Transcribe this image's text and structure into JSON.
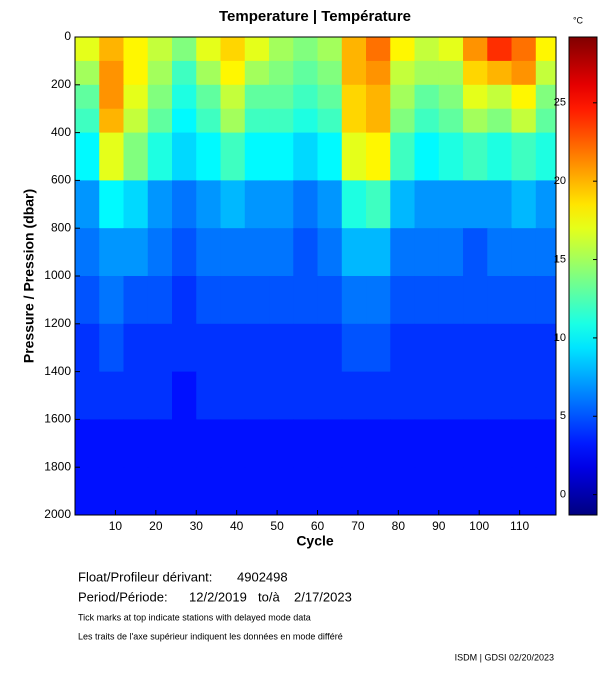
{
  "chart_data": {
    "type": "heatmap",
    "title": "Temperature | Température",
    "x_label": "Cycle",
    "y_label": "Pressure / Pression (dbar)",
    "colorbar_label": "°C",
    "colormap": "jet",
    "x": [
      0,
      6,
      12,
      18,
      24,
      30,
      36,
      42,
      48,
      54,
      60,
      66,
      72,
      78,
      84,
      90,
      96,
      102,
      108,
      114,
      119
    ],
    "y": [
      0,
      100,
      200,
      300,
      400,
      600,
      800,
      1000,
      1200,
      1400,
      1600,
      1800,
      2000
    ],
    "values": [
      [
        17,
        20,
        18,
        16,
        14,
        17,
        19,
        17,
        15,
        14,
        15,
        20,
        22,
        18,
        16,
        17,
        21,
        24,
        22,
        18
      ],
      [
        15,
        21,
        18,
        15,
        12,
        15,
        18,
        15,
        14,
        13,
        14,
        20,
        21,
        16,
        15,
        15,
        19,
        20,
        21,
        16
      ],
      [
        13,
        21,
        17,
        14,
        11,
        13,
        16,
        13,
        13,
        12,
        13,
        19,
        20,
        15,
        13,
        14,
        17,
        16,
        18,
        14
      ],
      [
        12,
        20,
        16,
        13,
        10,
        12,
        15,
        12,
        12,
        11,
        12,
        19,
        20,
        14,
        12,
        13,
        15,
        14,
        16,
        13
      ],
      [
        10,
        17,
        14,
        11,
        9,
        10,
        12,
        10,
        10,
        9,
        10,
        17,
        18,
        12,
        10,
        11,
        12,
        11,
        12,
        11
      ],
      [
        7,
        10,
        9,
        7,
        6,
        7,
        8,
        7,
        7,
        6,
        7,
        11,
        12,
        8,
        7,
        7,
        7,
        7,
        8,
        7
      ],
      [
        6,
        7,
        7,
        6,
        5,
        6,
        6,
        6,
        6,
        5,
        6,
        8,
        8,
        6,
        6,
        6,
        5,
        6,
        6,
        6
      ],
      [
        5,
        6,
        5,
        5,
        4,
        5,
        5,
        5,
        5,
        5,
        5,
        6,
        6,
        5,
        5,
        5,
        5,
        5,
        5,
        5
      ],
      [
        4,
        5,
        4,
        4,
        4,
        4,
        4,
        4,
        4,
        4,
        4,
        5,
        5,
        4,
        4,
        4,
        4,
        4,
        4,
        4
      ],
      [
        4,
        4,
        4,
        4,
        3,
        4,
        4,
        4,
        4,
        4,
        4,
        4,
        4,
        4,
        4,
        4,
        4,
        4,
        4,
        4
      ],
      [
        3,
        3,
        3,
        3,
        3,
        3,
        3,
        3,
        3,
        3,
        3,
        3,
        3,
        3,
        3,
        3,
        3,
        3,
        3,
        3
      ],
      [
        3,
        3,
        3,
        3,
        3,
        3,
        3,
        3,
        3,
        3,
        3,
        3,
        3,
        3,
        3,
        3,
        3,
        3,
        3,
        3
      ]
    ],
    "xlim": [
      0,
      119
    ],
    "xticks": [
      10,
      20,
      30,
      40,
      50,
      60,
      70,
      80,
      90,
      100,
      110
    ],
    "ylim": [
      2000,
      0
    ],
    "yticks": [
      0,
      200,
      400,
      600,
      800,
      1000,
      1200,
      1400,
      1600,
      1800,
      2000
    ],
    "zlim": [
      -1.3,
      29.2
    ],
    "zticks": [
      0,
      5,
      10,
      15,
      20,
      25
    ]
  },
  "info": {
    "float_label": "Float/Profileur dérivant:",
    "float_id": "4902498",
    "period_label": "Period/Période:",
    "start": "12/2/2019",
    "to": "to/à",
    "end": "2/17/2023",
    "note_en": "Tick marks at top indicate stations with delayed mode data",
    "note_fr": "Les traits de l'axe supérieur indiquent les données en mode différé",
    "footer": "ISDM | GDSI 02/20/2023"
  }
}
